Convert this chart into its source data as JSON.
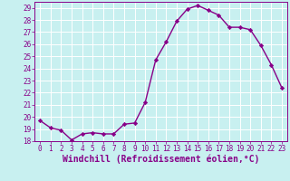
{
  "x": [
    0,
    1,
    2,
    3,
    4,
    5,
    6,
    7,
    8,
    9,
    10,
    11,
    12,
    13,
    14,
    15,
    16,
    17,
    18,
    19,
    20,
    21,
    22,
    23
  ],
  "y": [
    19.7,
    19.1,
    18.9,
    18.1,
    18.6,
    18.7,
    18.6,
    18.6,
    19.4,
    19.5,
    21.2,
    24.7,
    26.2,
    27.9,
    28.9,
    29.2,
    28.8,
    28.4,
    27.4,
    27.4,
    27.2,
    25.9,
    24.3,
    22.4
  ],
  "line_color": "#880088",
  "marker": "D",
  "marker_size": 2.2,
  "bg_color": "#c8f0f0",
  "grid_color": "#ffffff",
  "xlabel": "Windchill (Refroidissement éolien,°C)",
  "xlim": [
    -0.5,
    23.5
  ],
  "ylim": [
    18,
    29.5
  ],
  "yticks": [
    18,
    19,
    20,
    21,
    22,
    23,
    24,
    25,
    26,
    27,
    28,
    29
  ],
  "xticks": [
    0,
    1,
    2,
    3,
    4,
    5,
    6,
    7,
    8,
    9,
    10,
    11,
    12,
    13,
    14,
    15,
    16,
    17,
    18,
    19,
    20,
    21,
    22,
    23
  ],
  "tick_label_size": 5.5,
  "xlabel_size": 7.0,
  "line_width": 1.0
}
